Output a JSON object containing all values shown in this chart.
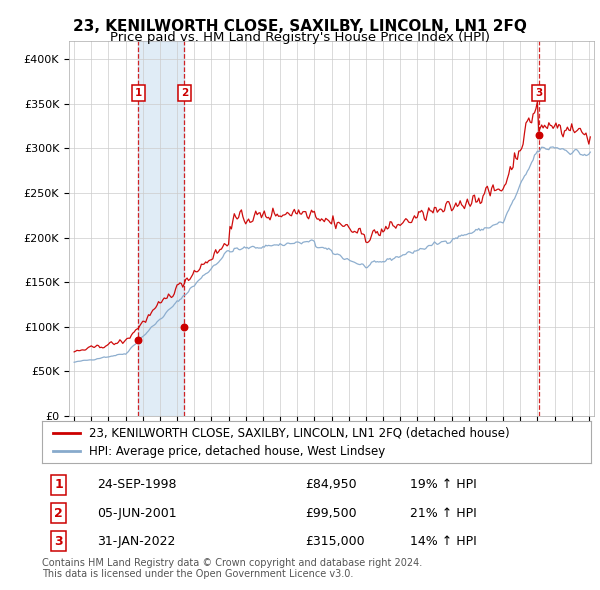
{
  "title": "23, KENILWORTH CLOSE, SAXILBY, LINCOLN, LN1 2FQ",
  "subtitle": "Price paid vs. HM Land Registry's House Price Index (HPI)",
  "ylim": [
    0,
    420000
  ],
  "yticks": [
    0,
    50000,
    100000,
    150000,
    200000,
    250000,
    300000,
    350000,
    400000
  ],
  "ytick_labels": [
    "£0",
    "£50K",
    "£100K",
    "£150K",
    "£200K",
    "£250K",
    "£300K",
    "£350K",
    "£400K"
  ],
  "xlim_start": 1994.7,
  "xlim_end": 2025.3,
  "legend_line1": "23, KENILWORTH CLOSE, SAXILBY, LINCOLN, LN1 2FQ (detached house)",
  "legend_line2": "HPI: Average price, detached house, West Lindsey",
  "footnote": "Contains HM Land Registry data © Crown copyright and database right 2024.\nThis data is licensed under the Open Government Licence v3.0.",
  "transactions": [
    {
      "num": 1,
      "date": "24-SEP-1998",
      "price": 84950,
      "price_str": "£84,950",
      "pct": "19%",
      "dir": "↑",
      "x": 1998.73
    },
    {
      "num": 2,
      "date": "05-JUN-2001",
      "price": 99500,
      "price_str": "£99,500",
      "pct": "21%",
      "dir": "↑",
      "x": 2001.43
    },
    {
      "num": 3,
      "date": "31-JAN-2022",
      "price": 315000,
      "price_str": "£315,000",
      "pct": "14%",
      "dir": "↑",
      "x": 2022.08
    }
  ],
  "line_color_red": "#cc0000",
  "line_color_blue": "#88aacc",
  "shade_color": "#cce0f0",
  "vline_color": "#cc0000",
  "grid_color": "#cccccc",
  "box_color": "#cc0000",
  "background_color": "#ffffff",
  "title_fontsize": 11,
  "subtitle_fontsize": 9.5,
  "tick_fontsize": 8,
  "legend_fontsize": 8.5,
  "table_fontsize": 9,
  "footnote_fontsize": 7
}
